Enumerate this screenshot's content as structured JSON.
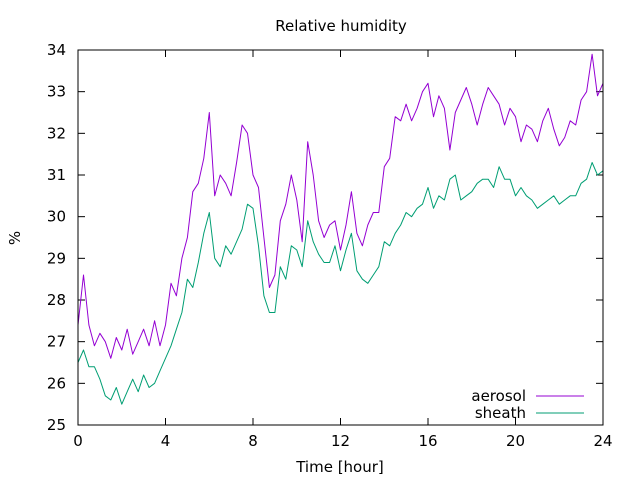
{
  "chart_data": {
    "type": "line",
    "title": "Relative humidity",
    "xlabel": "Time [hour]",
    "ylabel": "%",
    "xlim": [
      0,
      24
    ],
    "ylim": [
      25,
      34
    ],
    "xticks": [
      0,
      4,
      8,
      12,
      16,
      20,
      24
    ],
    "yticks": [
      25,
      26,
      27,
      28,
      29,
      30,
      31,
      32,
      33,
      34
    ],
    "grid": false,
    "legend": "bottom-right",
    "series": [
      {
        "name": "aerosol",
        "color": "#9400d3",
        "x": [
          0,
          0.25,
          0.5,
          0.75,
          1,
          1.25,
          1.5,
          1.75,
          2,
          2.25,
          2.5,
          2.75,
          3,
          3.25,
          3.5,
          3.75,
          4,
          4.25,
          4.5,
          4.75,
          5,
          5.25,
          5.5,
          5.75,
          6,
          6.25,
          6.5,
          6.75,
          7,
          7.25,
          7.5,
          7.75,
          8,
          8.25,
          8.5,
          8.75,
          9,
          9.25,
          9.5,
          9.75,
          10,
          10.25,
          10.5,
          10.75,
          11,
          11.25,
          11.5,
          11.75,
          12,
          12.25,
          12.5,
          12.75,
          13,
          13.25,
          13.5,
          13.75,
          14,
          14.25,
          14.5,
          14.75,
          15,
          15.25,
          15.5,
          15.75,
          16,
          16.25,
          16.5,
          16.75,
          17,
          17.25,
          17.5,
          17.75,
          18,
          18.25,
          18.5,
          18.75,
          19,
          19.25,
          19.5,
          19.75,
          20,
          20.25,
          20.5,
          20.75,
          21,
          21.25,
          21.5,
          21.75,
          22,
          22.25,
          22.5,
          22.75,
          23,
          23.25,
          23.5,
          23.75,
          24
        ],
        "y": [
          27.4,
          28.6,
          27.4,
          26.9,
          27.2,
          27.0,
          26.6,
          27.1,
          26.8,
          27.3,
          26.7,
          27.0,
          27.3,
          26.9,
          27.5,
          26.9,
          27.4,
          28.4,
          28.1,
          29.0,
          29.5,
          30.6,
          30.8,
          31.4,
          32.5,
          30.5,
          31.0,
          30.8,
          30.5,
          31.3,
          32.2,
          32.0,
          31.0,
          30.7,
          29.5,
          28.3,
          28.6,
          29.9,
          30.3,
          31.0,
          30.4,
          29.4,
          31.8,
          31.0,
          29.9,
          29.5,
          29.8,
          29.9,
          29.2,
          29.8,
          30.6,
          29.6,
          29.3,
          29.8,
          30.1,
          30.1,
          31.2,
          31.4,
          32.4,
          32.3,
          32.7,
          32.3,
          32.6,
          33.0,
          33.2,
          32.4,
          32.9,
          32.6,
          31.6,
          32.5,
          32.8,
          33.1,
          32.7,
          32.2,
          32.7,
          33.1,
          32.9,
          32.7,
          32.2,
          32.6,
          32.4,
          31.8,
          32.2,
          32.1,
          31.8,
          32.3,
          32.6,
          32.1,
          31.7,
          31.9,
          32.3,
          32.2,
          32.8,
          33.0,
          33.9,
          32.9,
          33.2
        ]
      },
      {
        "name": "sheath",
        "color": "#009e73",
        "x": [
          0,
          0.25,
          0.5,
          0.75,
          1,
          1.25,
          1.5,
          1.75,
          2,
          2.25,
          2.5,
          2.75,
          3,
          3.25,
          3.5,
          3.75,
          4,
          4.25,
          4.5,
          4.75,
          5,
          5.25,
          5.5,
          5.75,
          6,
          6.25,
          6.5,
          6.75,
          7,
          7.25,
          7.5,
          7.75,
          8,
          8.25,
          8.5,
          8.75,
          9,
          9.25,
          9.5,
          9.75,
          10,
          10.25,
          10.5,
          10.75,
          11,
          11.25,
          11.5,
          11.75,
          12,
          12.25,
          12.5,
          12.75,
          13,
          13.25,
          13.5,
          13.75,
          14,
          14.25,
          14.5,
          14.75,
          15,
          15.25,
          15.5,
          15.75,
          16,
          16.25,
          16.5,
          16.75,
          17,
          17.25,
          17.5,
          17.75,
          18,
          18.25,
          18.5,
          18.75,
          19,
          19.25,
          19.5,
          19.75,
          20,
          20.25,
          20.5,
          20.75,
          21,
          21.25,
          21.5,
          21.75,
          22,
          22.25,
          22.5,
          22.75,
          23,
          23.25,
          23.5,
          23.75,
          24
        ],
        "y": [
          26.5,
          26.8,
          26.4,
          26.4,
          26.1,
          25.7,
          25.6,
          25.9,
          25.5,
          25.8,
          26.1,
          25.8,
          26.2,
          25.9,
          26.0,
          26.3,
          26.6,
          26.9,
          27.3,
          27.7,
          28.5,
          28.3,
          28.9,
          29.6,
          30.1,
          29.0,
          28.8,
          29.3,
          29.1,
          29.4,
          29.7,
          30.3,
          30.2,
          29.3,
          28.1,
          27.7,
          27.7,
          28.8,
          28.5,
          29.3,
          29.2,
          28.8,
          29.9,
          29.4,
          29.1,
          28.9,
          28.9,
          29.3,
          28.7,
          29.2,
          29.6,
          28.7,
          28.5,
          28.4,
          28.6,
          28.8,
          29.4,
          29.3,
          29.6,
          29.8,
          30.1,
          30.0,
          30.2,
          30.3,
          30.7,
          30.2,
          30.5,
          30.4,
          30.9,
          31.0,
          30.4,
          30.5,
          30.6,
          30.8,
          30.9,
          30.9,
          30.7,
          31.2,
          30.9,
          30.9,
          30.5,
          30.7,
          30.5,
          30.4,
          30.2,
          30.3,
          30.4,
          30.5,
          30.3,
          30.4,
          30.5,
          30.5,
          30.8,
          30.9,
          31.3,
          31.0,
          31.1
        ]
      }
    ]
  }
}
